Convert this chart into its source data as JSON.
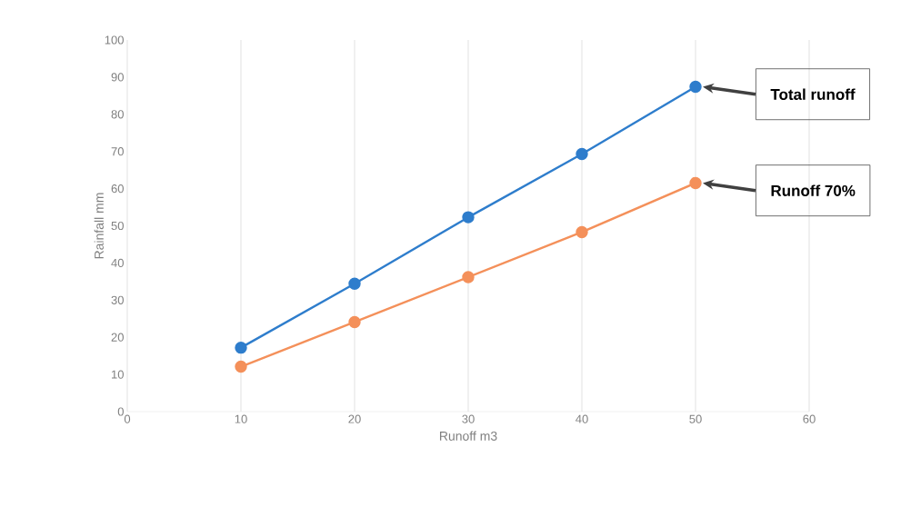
{
  "chart_data": {
    "type": "line",
    "xlabel": "Runoff m3",
    "ylabel": "Rainfall mm",
    "x": [
      10,
      20,
      30,
      40,
      50
    ],
    "series": [
      {
        "color": "#2e7dcc",
        "values": [
          17.2,
          34.4,
          52.3,
          69.3,
          87.4
        ]
      },
      {
        "color": "#f4905a",
        "values": [
          12.1,
          24.1,
          36.2,
          48.3,
          61.5
        ]
      }
    ],
    "xlim": [
      0,
      60
    ],
    "xticks": [
      0,
      10,
      20,
      30,
      40,
      50,
      60
    ],
    "ylim": [
      0,
      100
    ],
    "yticks": [
      0,
      10,
      20,
      30,
      40,
      50,
      60,
      70,
      80,
      90,
      100
    ],
    "grid": "x",
    "marker": "circle",
    "line_style": "solid",
    "annotations": [
      "Total runoff",
      "Runoff 70%"
    ]
  }
}
